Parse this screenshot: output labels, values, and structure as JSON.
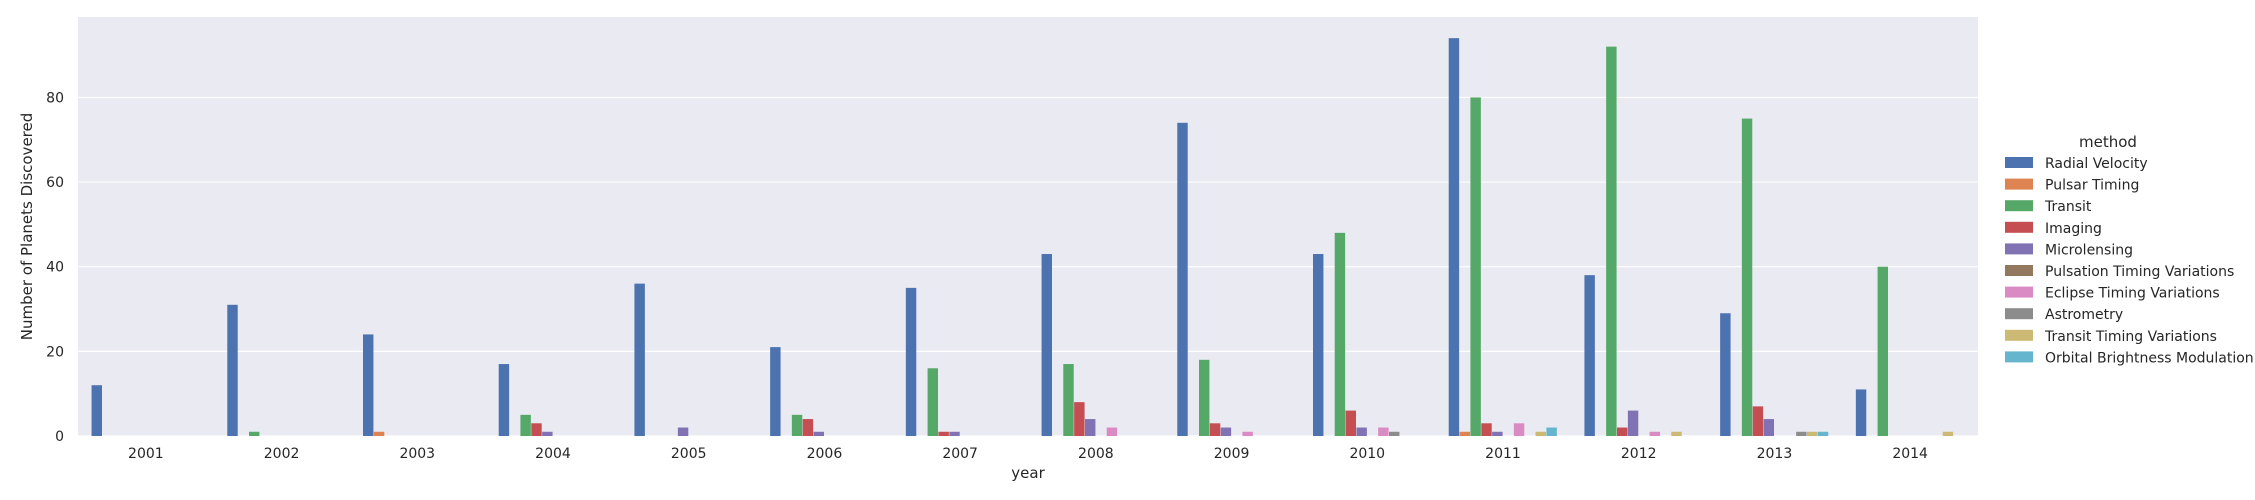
{
  "chart_data": {
    "type": "bar",
    "xlabel": "year",
    "ylabel": "Number of Planets Discovered",
    "categories": [
      "2001",
      "2002",
      "2003",
      "2004",
      "2005",
      "2006",
      "2007",
      "2008",
      "2009",
      "2010",
      "2011",
      "2012",
      "2013",
      "2014"
    ],
    "ylim": [
      0,
      99
    ],
    "yticks": [
      0,
      20,
      40,
      60,
      80
    ],
    "grid": true,
    "legend": {
      "title": "method",
      "placement": "right"
    },
    "series": [
      {
        "name": "Radial Velocity",
        "color": "#4c72b0",
        "values": [
          12,
          31,
          24,
          17,
          36,
          21,
          35,
          43,
          74,
          43,
          94,
          38,
          29,
          11
        ]
      },
      {
        "name": "Pulsar Timing",
        "color": "#dd8452",
        "values": [
          0,
          0,
          1,
          0,
          0,
          0,
          0,
          0,
          0,
          0,
          1,
          0,
          0,
          0
        ]
      },
      {
        "name": "Transit",
        "color": "#55a868",
        "values": [
          0,
          1,
          0,
          5,
          0,
          5,
          16,
          17,
          18,
          48,
          80,
          92,
          75,
          40
        ]
      },
      {
        "name": "Imaging",
        "color": "#c44e52",
        "values": [
          0,
          0,
          0,
          3,
          0,
          4,
          1,
          8,
          3,
          6,
          3,
          2,
          7,
          0
        ]
      },
      {
        "name": "Microlensing",
        "color": "#8172b3",
        "values": [
          0,
          0,
          0,
          1,
          2,
          1,
          1,
          4,
          2,
          2,
          1,
          6,
          4,
          0
        ]
      },
      {
        "name": "Pulsation Timing Variations",
        "color": "#937860",
        "values": [
          0,
          0,
          0,
          0,
          0,
          0,
          0,
          0,
          0,
          0,
          0,
          0,
          0,
          0
        ]
      },
      {
        "name": "Eclipse Timing Variations",
        "color": "#da8bc3",
        "values": [
          0,
          0,
          0,
          0,
          0,
          0,
          0,
          2,
          1,
          2,
          3,
          1,
          0,
          0
        ]
      },
      {
        "name": "Astrometry",
        "color": "#8c8c8c",
        "values": [
          0,
          0,
          0,
          0,
          0,
          0,
          0,
          0,
          0,
          1,
          0,
          0,
          1,
          0
        ]
      },
      {
        "name": "Transit Timing Variations",
        "color": "#ccb974",
        "values": [
          0,
          0,
          0,
          0,
          0,
          0,
          0,
          0,
          0,
          0,
          1,
          1,
          1,
          1
        ]
      },
      {
        "name": "Orbital Brightness Modulation",
        "color": "#64b5cd",
        "values": [
          0,
          0,
          0,
          0,
          0,
          0,
          0,
          0,
          0,
          0,
          2,
          0,
          1,
          0
        ]
      }
    ]
  }
}
